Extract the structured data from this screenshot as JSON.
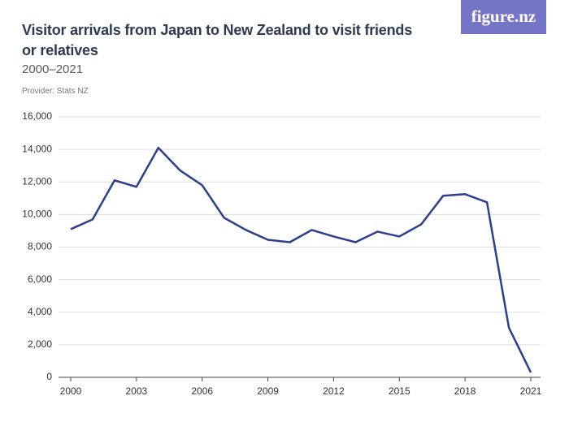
{
  "logo": "figure.nz",
  "chart_data": {
    "type": "line",
    "title": "Visitor arrivals from Japan to New Zealand to visit friends or relatives",
    "subtitle": "2000–2021",
    "source": "Provider: Stats NZ",
    "x": [
      2000,
      2001,
      2002,
      2003,
      2004,
      2005,
      2006,
      2007,
      2008,
      2009,
      2010,
      2011,
      2012,
      2013,
      2014,
      2015,
      2016,
      2017,
      2018,
      2019,
      2020,
      2021
    ],
    "series": [
      {
        "color": "#2b3f8f",
        "values": [
          9100,
          9700,
          12100,
          11700,
          14100,
          12700,
          11800,
          9800,
          9050,
          8450,
          8300,
          9050,
          8650,
          8300,
          8950,
          8650,
          9400,
          11150,
          11250,
          10750,
          3050,
          300
        ]
      }
    ],
    "xlim": [
      2000,
      2021
    ],
    "xticks": [
      2000,
      2003,
      2006,
      2009,
      2012,
      2015,
      2018,
      2021
    ],
    "ylim": [
      0,
      16000
    ],
    "yticks": [
      0,
      {
        "value": 2000,
        "label": "2,000"
      },
      {
        "value": 4000,
        "label": "4,000"
      },
      {
        "value": 6000,
        "label": "6,000"
      },
      {
        "value": 8000,
        "label": "8,000"
      },
      {
        "value": 10000,
        "label": "10,000"
      },
      {
        "value": 12000,
        "label": "12,000"
      },
      {
        "value": 14000,
        "label": "14,000"
      },
      {
        "value": 16000,
        "label": "16,000"
      }
    ],
    "grid": true
  }
}
